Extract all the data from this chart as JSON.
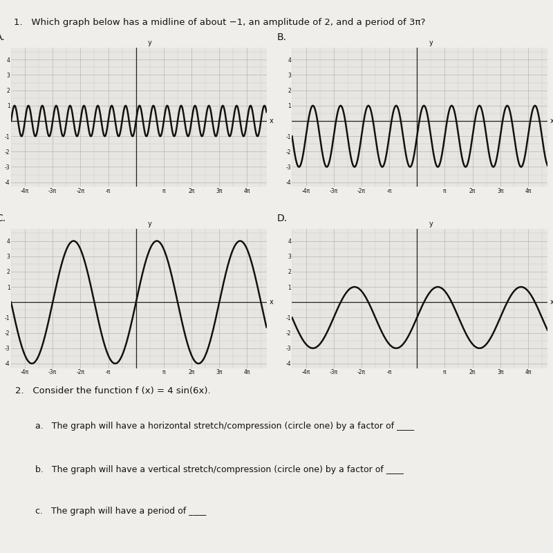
{
  "title": "1.   Which graph below has a midline of about −1, an amplitude of 2, and a period of 3π?",
  "question2_title": "2.   Consider the function f (x) = 4 sin(6x).",
  "question2_a": "a.   The graph will have a horizontal stretch/compression (circle one) by a factor of ____",
  "question2_b": "b.   The graph will have a vertical stretch/compression (circle one) by a factor of ____",
  "question2_c": "c.   The graph will have a period of ____",
  "bg_color": "#f0eeeb",
  "graph_bg": "#e8e6e2",
  "graphs": [
    {
      "label": "A",
      "midline": 0,
      "amplitude": 1,
      "period_factor": 0.5,
      "xlim": [
        -4.5,
        4.7
      ],
      "ylim": [
        -4.3,
        4.8
      ],
      "yticks": [
        -4,
        -3,
        -2,
        -1,
        1,
        2,
        3,
        4
      ],
      "xtick_pis": [
        -4,
        -3,
        -2,
        -1,
        1,
        2,
        3,
        4
      ]
    },
    {
      "label": "B",
      "midline": -1,
      "amplitude": 2,
      "period_factor": 1.0,
      "xlim": [
        -4.5,
        4.7
      ],
      "ylim": [
        -4.3,
        4.8
      ],
      "yticks": [
        -4,
        -3,
        -2,
        -1,
        1,
        2,
        3,
        4
      ],
      "xtick_pis": [
        -4,
        -3,
        -2,
        -1,
        1,
        2,
        3,
        4
      ]
    },
    {
      "label": "C",
      "midline": 0,
      "amplitude": 4,
      "period_factor": 3.0,
      "xlim": [
        -4.5,
        4.7
      ],
      "ylim": [
        -4.3,
        4.8
      ],
      "yticks": [
        -4,
        -3,
        -2,
        -1,
        1,
        2,
        3,
        4
      ],
      "xtick_pis": [
        -4,
        -3,
        -2,
        -1,
        1,
        2,
        3,
        4
      ]
    },
    {
      "label": "D",
      "midline": -1,
      "amplitude": 2,
      "period_factor": 3.0,
      "xlim": [
        -4.5,
        4.7
      ],
      "ylim": [
        -4.3,
        4.8
      ],
      "yticks": [
        -4,
        -3,
        -2,
        -1,
        1,
        2,
        3,
        4
      ],
      "xtick_pis": [
        -4,
        -3,
        -2,
        -1,
        1,
        2,
        3,
        4
      ]
    }
  ],
  "line_color": "#111111",
  "line_width": 1.8,
  "axis_color": "#222222",
  "grid_color": "#b8b5b0",
  "minor_grid_color": "#ccc9c4",
  "text_color": "#111111"
}
